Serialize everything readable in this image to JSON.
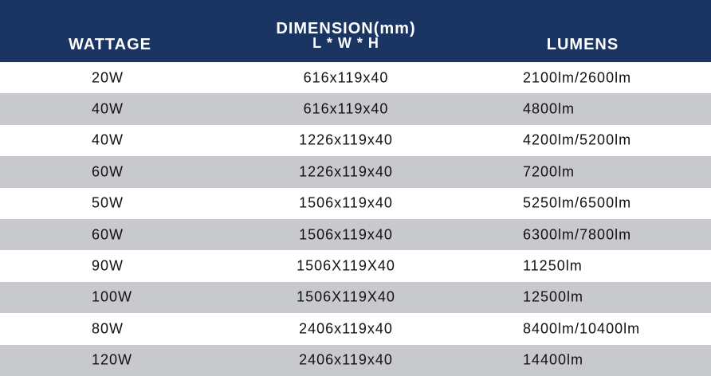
{
  "table": {
    "headers": {
      "wattage": "WATTAGE",
      "dimension": "DIMENSION(mm)",
      "dimension_sub": "L * W * H",
      "lumens": "LUMENS"
    },
    "rows": [
      [
        "20W",
        "616x119x40",
        "2100lm/2600lm"
      ],
      [
        "40W",
        "616x119x40",
        "4800lm"
      ],
      [
        "40W",
        "1226x119x40",
        "4200lm/5200lm"
      ],
      [
        "60W",
        "1226x119x40",
        "7200lm"
      ],
      [
        "50W",
        "1506x119x40",
        "5250lm/6500lm"
      ],
      [
        "60W",
        "1506x119x40",
        "6300lm/7800lm"
      ],
      [
        "90W",
        "1506X119X40",
        "11250lm"
      ],
      [
        "100W",
        "1506X119X40",
        "12500lm"
      ],
      [
        "80W",
        "2406x119x40",
        "8400lm/10400lm"
      ],
      [
        "120W",
        "2406x119x40",
        "14400lm"
      ]
    ]
  }
}
